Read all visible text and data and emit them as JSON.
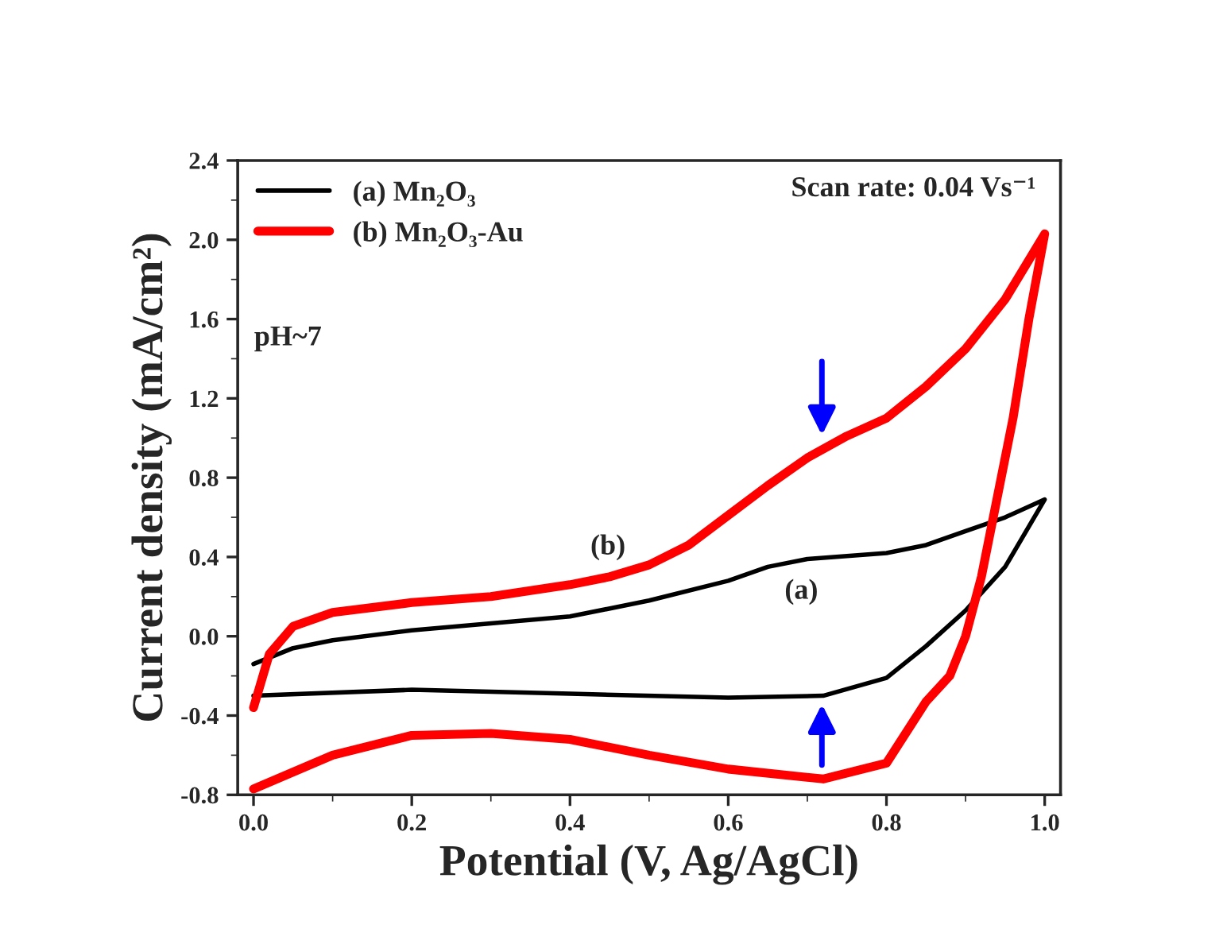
{
  "chart_data": {
    "type": "line",
    "xlabel": "Potential (V, Ag/AgCl)",
    "ylabel": "Current density (mA/cm²)",
    "xlim": [
      -0.02,
      1.02
    ],
    "ylim": [
      -0.8,
      2.4
    ],
    "xticks": [
      {
        "value": 0,
        "label": "0.0"
      },
      {
        "value": 0.2,
        "label": "0.2"
      },
      {
        "value": 0.4,
        "label": "0.4"
      },
      {
        "value": 0.6,
        "label": "0.6"
      },
      {
        "value": 0.8,
        "label": "0.8"
      },
      {
        "value": 1.0,
        "label": "1.0"
      }
    ],
    "yticks": [
      {
        "value": -0.8,
        "label": "-0.8"
      },
      {
        "value": -0.4,
        "label": "-0.4"
      },
      {
        "value": 0,
        "label": "0.0"
      },
      {
        "value": 0.4,
        "label": "0.4"
      },
      {
        "value": 0.8,
        "label": "0.8"
      },
      {
        "value": 1.2,
        "label": "1.2"
      },
      {
        "value": 1.6,
        "label": "1.6"
      },
      {
        "value": 2.0,
        "label": "2.0"
      },
      {
        "value": 2.4,
        "label": "2.4"
      }
    ],
    "grid": false,
    "legend": "top left",
    "line_style": "solid",
    "marker": "none",
    "series": [
      {
        "name": "(a) Mn₂O₃",
        "color": "#000000",
        "x": [
          0.0,
          0.05,
          0.1,
          0.2,
          0.4,
          0.5,
          0.6,
          0.65,
          0.7,
          0.8,
          0.85,
          0.9,
          0.95,
          1.0,
          0.95,
          0.9,
          0.85,
          0.8,
          0.72,
          0.6,
          0.4,
          0.2,
          0.0
        ],
        "values": [
          -0.14,
          -0.06,
          -0.02,
          0.03,
          0.1,
          0.18,
          0.28,
          0.35,
          0.39,
          0.42,
          0.46,
          0.53,
          0.6,
          0.69,
          0.35,
          0.13,
          -0.05,
          -0.21,
          -0.3,
          -0.31,
          -0.29,
          -0.27,
          -0.3
        ]
      },
      {
        "name": "(b) Mn₂O₃-Au",
        "color": "#ff0000",
        "x": [
          0.0,
          0.02,
          0.05,
          0.1,
          0.2,
          0.3,
          0.4,
          0.45,
          0.5,
          0.55,
          0.6,
          0.65,
          0.7,
          0.75,
          0.8,
          0.85,
          0.9,
          0.95,
          1.0,
          0.98,
          0.96,
          0.94,
          0.92,
          0.9,
          0.88,
          0.85,
          0.8,
          0.72,
          0.6,
          0.5,
          0.4,
          0.3,
          0.2,
          0.1,
          0.0
        ],
        "values": [
          -0.36,
          -0.09,
          0.05,
          0.12,
          0.17,
          0.2,
          0.26,
          0.3,
          0.36,
          0.46,
          0.61,
          0.76,
          0.9,
          1.01,
          1.1,
          1.26,
          1.45,
          1.7,
          2.03,
          1.6,
          1.1,
          0.7,
          0.3,
          0.0,
          -0.2,
          -0.33,
          -0.64,
          -0.72,
          -0.67,
          -0.6,
          -0.52,
          -0.49,
          -0.5,
          -0.6,
          -0.77
        ]
      }
    ],
    "annotations": [
      "Scan rate: 0.04 Vs⁻¹",
      "pH~7",
      "(b)",
      "(a)"
    ]
  }
}
